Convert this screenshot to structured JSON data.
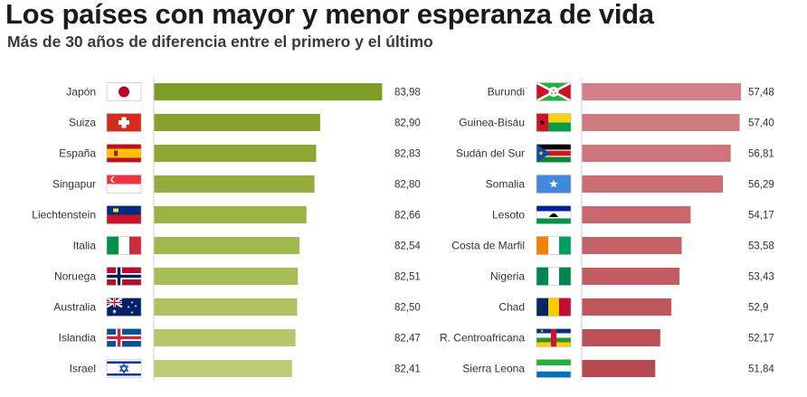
{
  "header": {
    "title": "Los países con mayor y menor esperanza de vida",
    "subtitle": "Más de 30 años de diferencia entre el primero y el último"
  },
  "chart_data": [
    {
      "type": "bar",
      "orientation": "horizontal",
      "title": "",
      "categories": [
        "Japón",
        "Suiza",
        "España",
        "Singapur",
        "Liechtenstein",
        "Italia",
        "Noruega",
        "Australia",
        "Islandia",
        "Israel"
      ],
      "values": [
        83.98,
        82.9,
        82.83,
        82.8,
        82.66,
        82.54,
        82.51,
        82.5,
        82.47,
        82.41
      ],
      "value_labels": [
        "83,98",
        "82,90",
        "82,83",
        "82,80",
        "82,66",
        "82,54",
        "82,51",
        "82,50",
        "82,47",
        "82,41"
      ],
      "flags": [
        "japan",
        "switzerland",
        "spain",
        "singapore",
        "liechtenstein",
        "italy",
        "norway",
        "australia",
        "iceland",
        "israel"
      ],
      "colors": [
        "#7e9d25",
        "#85a22c",
        "#8ca833",
        "#93ad3b",
        "#9ab343",
        "#a1b84c",
        "#a8bd56",
        "#afc25f",
        "#b6c769",
        "#bdcc73"
      ],
      "grid": false,
      "legend": "none"
    },
    {
      "type": "bar",
      "orientation": "horizontal",
      "title": "",
      "categories": [
        "Burundi",
        "Guinea-Bisáu",
        "Sudán del Sur",
        "Somalia",
        "Lesoto",
        "Costa de Marfil",
        "Nigeria",
        "Chad",
        "R. Centroafricana",
        "Sierra Leona"
      ],
      "values": [
        57.48,
        57.4,
        56.81,
        56.29,
        54.17,
        53.58,
        53.43,
        52.9,
        52.17,
        51.84
      ],
      "value_labels": [
        "57,48",
        "57,40",
        "56,81",
        "56,29",
        "54,17",
        "53,58",
        "53,43",
        "52,9",
        "52,17",
        "51,84"
      ],
      "flags": [
        "burundi",
        "guinea-bissau",
        "south-sudan",
        "somalia",
        "lesotho",
        "ivory-coast",
        "nigeria",
        "chad",
        "central-african-republic",
        "sierra-leone"
      ],
      "colors": [
        "#d47f85",
        "#d17a80",
        "#ce747a",
        "#cb6e74",
        "#c8686e",
        "#c56268",
        "#c25c62",
        "#bf565c",
        "#bc5056",
        "#b94a50"
      ],
      "grid": false,
      "legend": "none"
    }
  ]
}
